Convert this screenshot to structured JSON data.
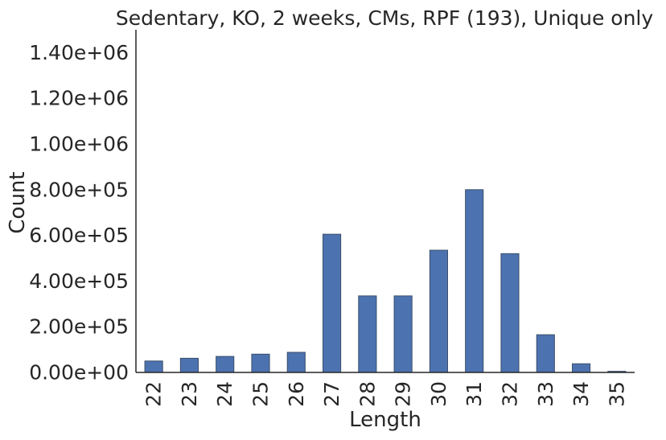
{
  "chart_data": {
    "type": "bar",
    "title": "Sedentary, KO, 2 weeks, CMs, RPF (193), Unique only",
    "xlabel": "Length",
    "ylabel": "Count",
    "categories": [
      "22",
      "23",
      "24",
      "25",
      "26",
      "27",
      "28",
      "29",
      "30",
      "31",
      "32",
      "33",
      "34",
      "35"
    ],
    "values": [
      50000,
      62000,
      70000,
      80000,
      88000,
      605000,
      335000,
      335000,
      535000,
      800000,
      520000,
      165000,
      38000,
      5000
    ],
    "ylim": [
      0,
      1500000
    ],
    "yticks": [
      0,
      200000,
      400000,
      600000,
      800000,
      1000000,
      1200000,
      1400000
    ],
    "ytick_labels": [
      "0.00e+00",
      "2.00e+05",
      "4.00e+05",
      "6.00e+05",
      "8.00e+05",
      "1.00e+06",
      "1.20e+06",
      "1.40e+06"
    ],
    "bar_color": "#4c72b0",
    "grid": false
  }
}
